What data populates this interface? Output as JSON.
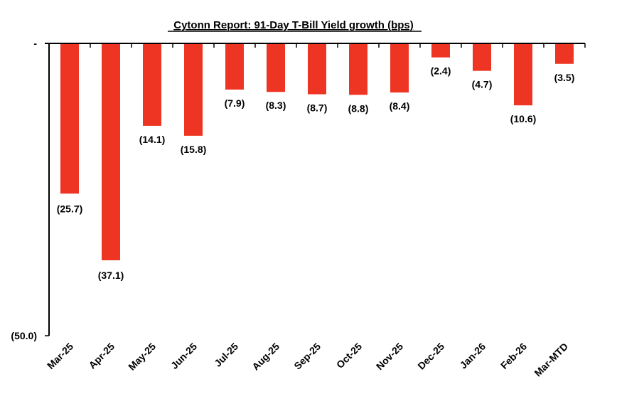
{
  "chart_data": {
    "type": "bar",
    "title": "Cytonn Report:  91-Day T-Bill Yield growth (bps)",
    "xlabel": "",
    "ylabel": "",
    "ylim": [
      -50,
      0
    ],
    "y_ticks": [
      0,
      -50
    ],
    "y_tick_labels": [
      "-",
      "(50.0)"
    ],
    "grid": false,
    "categories": [
      "Mar-25",
      "Apr-25",
      "May-25",
      "Jun-25",
      "Jul-25",
      "Aug-25",
      "Sep-25",
      "Oct-25",
      "Nov-25",
      "Dec-25",
      "Jan-26",
      "Feb-26",
      "Mar-MTD"
    ],
    "values": [
      -25.7,
      -37.1,
      -14.1,
      -15.8,
      -7.9,
      -8.3,
      -8.7,
      -8.8,
      -8.4,
      -2.4,
      -4.7,
      -10.6,
      -3.5
    ],
    "data_labels": [
      "(25.7)",
      "(37.1)",
      "(14.1)",
      "(15.8)",
      "(7.9)",
      "(8.3)",
      "(8.7)",
      "(8.8)",
      "(8.4)",
      "(2.4)",
      "(4.7)",
      "(10.6)",
      "(3.5)"
    ],
    "bar_color": "#EE3524"
  }
}
